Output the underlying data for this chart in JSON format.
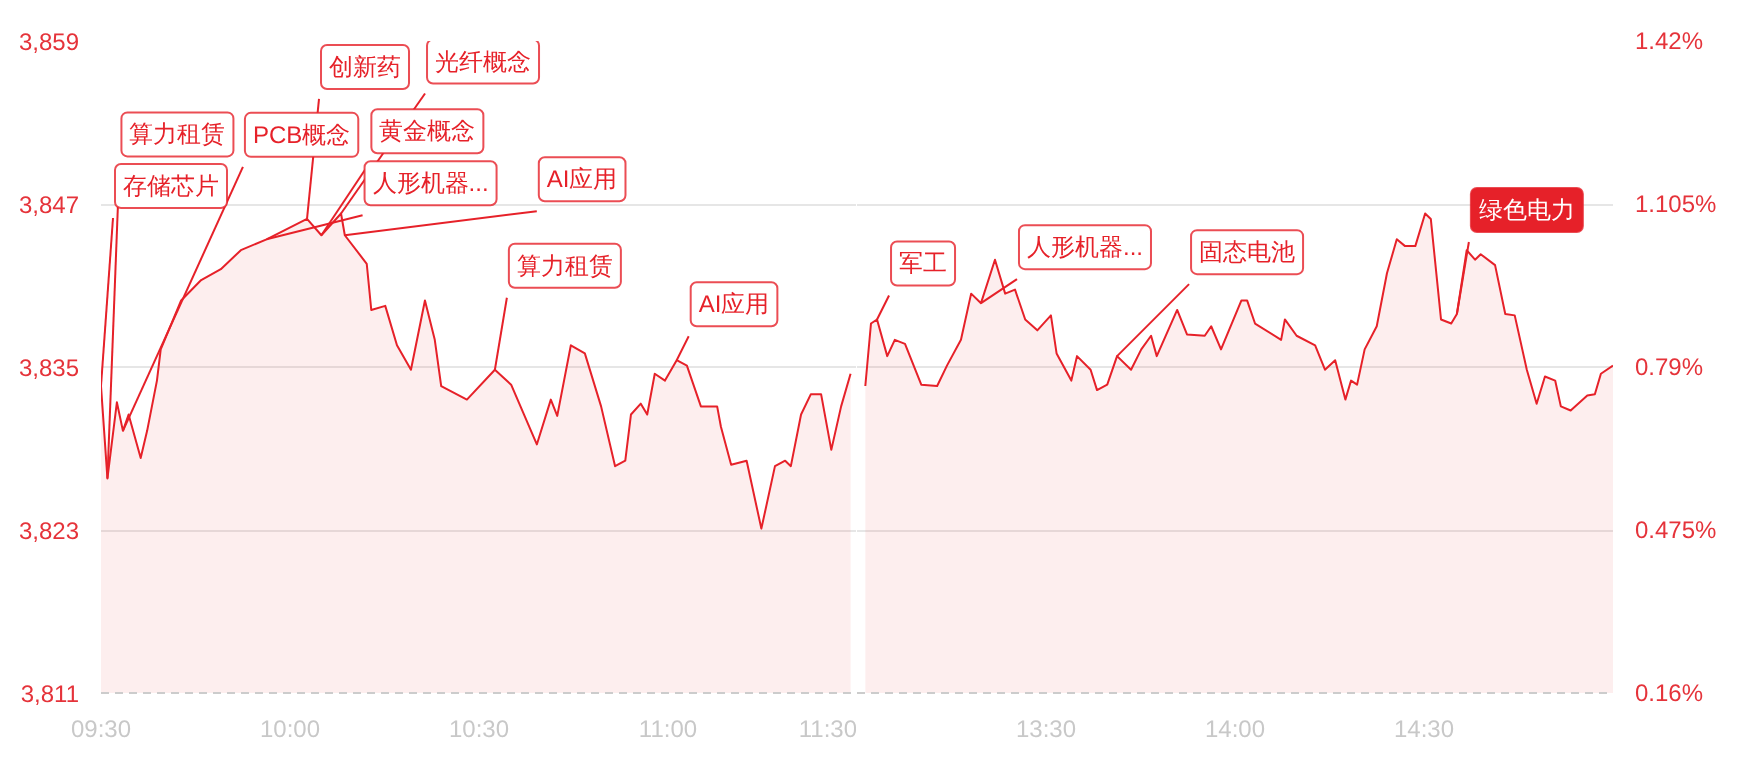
{
  "chart_data": [
    {
      "type": "area",
      "x": [
        9.5,
        9.517,
        9.542,
        9.558,
        9.573,
        9.605,
        9.622,
        9.648,
        9.658,
        9.712,
        9.765,
        9.817,
        9.87,
        9.938,
        10.045,
        10.083,
        10.135,
        10.145,
        10.203,
        10.215,
        10.252,
        10.283,
        10.32,
        10.357,
        10.383,
        10.4,
        10.468,
        10.542,
        10.585,
        10.653,
        10.69,
        10.707,
        10.743,
        10.78,
        10.823,
        10.86,
        10.887,
        10.902,
        10.928,
        10.945,
        10.965,
        10.992,
        11.023,
        11.05,
        11.087,
        11.13,
        11.14,
        11.167,
        11.208,
        11.247,
        11.283,
        11.31,
        11.325,
        11.352,
        11.378,
        11.405,
        11.432,
        11.458,
        11.483
      ],
      "series": [
        {
          "color": "#e62129",
          "values": [
            3833.6,
            3826.8,
            3832.4,
            3830.3,
            3831.5,
            3828.3,
            3830.3,
            3834.0,
            3836.3,
            3839.9,
            3841.4,
            3842.2,
            3843.6,
            3844.4,
            3845.9,
            3844.7,
            3846.3,
            3844.7,
            3842.6,
            3839.2,
            3839.5,
            3836.6,
            3834.8,
            3839.9,
            3837.0,
            3833.6,
            3832.6,
            3834.8,
            3833.7,
            3829.3,
            3832.6,
            3831.4,
            3836.6,
            3836.0,
            3832.1,
            3827.7,
            3828.1,
            3831.5,
            3832.3,
            3831.5,
            3834.5,
            3834.0,
            3835.5,
            3835.1,
            3832.1,
            3832.1,
            3830.6,
            3827.8,
            3828.1,
            3823.1,
            3827.7,
            3828.1,
            3827.7,
            3831.5,
            3833.0,
            3833.0,
            3828.9,
            3832.1,
            3834.5
          ]
        }
      ],
      "xlim": [
        9.5,
        11.5
      ],
      "xticks": [
        {
          "value": 9.5,
          "label": "09:30"
        },
        {
          "value": 10,
          "label": "10:00"
        },
        {
          "value": 10.5,
          "label": "10:30"
        },
        {
          "value": 11,
          "label": "11:00"
        },
        {
          "value": 11.5,
          "label": "11:30"
        }
      ],
      "ylim": [
        3811,
        3859
      ],
      "yticks": [
        {
          "value": 3811,
          "label": "3,811"
        },
        {
          "value": 3823,
          "label": "3,823"
        },
        {
          "value": 3835,
          "label": "3,835"
        },
        {
          "value": 3847,
          "label": "3,847"
        },
        {
          "value": 3859,
          "label": "3,859"
        }
      ],
      "grid": "y",
      "annotations": [
        {
          "text": "存储芯片",
          "x": 9.5,
          "y": 3833.6
        },
        {
          "text": "算力租赁",
          "x": 9.517,
          "y": 3826.8
        },
        {
          "text": "PCB概念",
          "x": 9.558,
          "y": 3830.3
        },
        {
          "text": "人形机器...",
          "x": 9.938,
          "y": 3844.4
        },
        {
          "text": "创新药",
          "x": 10.045,
          "y": 3845.9
        },
        {
          "text": "黄金概念",
          "x": 10.083,
          "y": 3844.7
        },
        {
          "text": "光纤概念",
          "x": 10.135,
          "y": 3846.3
        },
        {
          "text": "AI应用",
          "x": 10.145,
          "y": 3844.7
        },
        {
          "text": "算力租赁",
          "x": 10.542,
          "y": 3834.8
        },
        {
          "text": "AI应用",
          "x": 11.023,
          "y": 3835.5
        }
      ]
    },
    {
      "type": "area",
      "x": [
        13.022,
        13.037,
        13.053,
        13.08,
        13.1,
        13.127,
        13.17,
        13.212,
        13.238,
        13.275,
        13.302,
        13.328,
        13.365,
        13.392,
        13.418,
        13.445,
        13.477,
        13.513,
        13.528,
        13.567,
        13.582,
        13.618,
        13.635,
        13.662,
        13.688,
        13.725,
        13.752,
        13.778,
        13.793,
        13.847,
        13.873,
        13.92,
        13.937,
        13.963,
        14.017,
        14.032,
        14.053,
        14.122,
        14.132,
        14.163,
        14.212,
        14.238,
        14.265,
        14.292,
        14.307,
        14.323,
        14.343,
        14.375,
        14.402,
        14.428,
        14.45,
        14.477,
        14.503,
        14.518,
        14.545,
        14.572,
        14.587,
        14.613,
        14.635,
        14.65,
        14.688,
        14.715,
        14.74,
        14.772,
        14.798,
        14.82,
        14.847,
        14.862,
        14.888,
        14.932,
        14.952,
        14.968,
        15
      ],
      "series": [
        {
          "color": "#e62129",
          "values": [
            3833.6,
            3838.2,
            3838.5,
            3835.8,
            3837.0,
            3836.7,
            3833.7,
            3833.6,
            3835.1,
            3837.0,
            3840.4,
            3839.7,
            3842.9,
            3840.4,
            3840.7,
            3838.5,
            3837.7,
            3838.8,
            3836.0,
            3834.0,
            3835.8,
            3834.8,
            3833.3,
            3833.7,
            3835.8,
            3834.8,
            3836.3,
            3837.3,
            3835.8,
            3839.2,
            3837.4,
            3837.3,
            3838.0,
            3836.3,
            3839.9,
            3839.9,
            3838.2,
            3837.0,
            3838.5,
            3837.3,
            3836.6,
            3834.8,
            3835.5,
            3832.6,
            3834.0,
            3833.7,
            3836.3,
            3838.0,
            3841.9,
            3844.4,
            3843.9,
            3843.9,
            3846.3,
            3845.9,
            3838.5,
            3838.2,
            3838.9,
            3843.6,
            3842.9,
            3843.3,
            3842.5,
            3838.9,
            3838.8,
            3834.8,
            3832.3,
            3834.3,
            3834.0,
            3832.1,
            3831.8,
            3832.9,
            3833.0,
            3834.5,
            3835.1
          ]
        }
      ],
      "xlim": [
        13,
        15
      ],
      "xticks": [
        {
          "value": 13.5,
          "label": "13:30"
        },
        {
          "value": 14,
          "label": "14:00"
        },
        {
          "value": 14.5,
          "label": "14:30"
        }
      ],
      "ylim": [
        3811,
        3859
      ],
      "y2lim": [
        0.16,
        1.42
      ],
      "y2ticks": [
        {
          "value": 0.16,
          "label": "0.16%"
        },
        {
          "value": 0.475,
          "label": "0.475%"
        },
        {
          "value": 0.79,
          "label": "0.79%"
        },
        {
          "value": 1.105,
          "label": "1.105%"
        },
        {
          "value": 1.42,
          "label": "1.42%"
        }
      ],
      "grid": "y",
      "annotations": [
        {
          "text": "军工",
          "x": 13.053,
          "y": 3838.5
        },
        {
          "text": "人形机器...",
          "x": 13.328,
          "y": 3839.7
        },
        {
          "text": "固态电池",
          "x": 13.688,
          "y": 3835.8
        },
        {
          "text": "绿色电力",
          "x": 14.587,
          "y": 3838.9
        }
      ]
    }
  ]
}
